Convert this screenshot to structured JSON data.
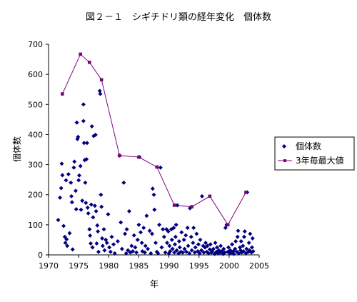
{
  "chart_data": {
    "type": "scatter",
    "title": "図２－１　シギチドリ類の経年変化　個体数",
    "xlabel": "年",
    "ylabel": "個体数",
    "xlim": [
      1970,
      2005
    ],
    "ylim": [
      0,
      700
    ],
    "x_ticks": [
      1970,
      1975,
      1980,
      1985,
      1990,
      1995,
      2000,
      2005
    ],
    "y_ticks": [
      0,
      100,
      200,
      300,
      400,
      500,
      600,
      700
    ],
    "grid": false,
    "legend_position": "right",
    "series": [
      {
        "name": "個体数",
        "kind": "scatter",
        "marker": "diamond",
        "color": "#000080",
        "points": [
          [
            1971.6,
            116
          ],
          [
            1971.9,
            190
          ],
          [
            1972.1,
            222
          ],
          [
            1972.2,
            303
          ],
          [
            1972.3,
            265
          ],
          [
            1972.5,
            96
          ],
          [
            1972.7,
            60
          ],
          [
            1972.8,
            40
          ],
          [
            1972.9,
            248
          ],
          [
            1973.0,
            52
          ],
          [
            1973.1,
            30
          ],
          [
            1973.3,
            268
          ],
          [
            1973.5,
            72
          ],
          [
            1973.7,
            240
          ],
          [
            1973.8,
            195
          ],
          [
            1973.9,
            175
          ],
          [
            1974.0,
            18
          ],
          [
            1974.2,
            290
          ],
          [
            1974.3,
            310
          ],
          [
            1974.5,
            213
          ],
          [
            1974.6,
            152
          ],
          [
            1974.7,
            440
          ],
          [
            1974.8,
            385
          ],
          [
            1974.9,
            392
          ],
          [
            1975.0,
            248
          ],
          [
            1975.1,
            264
          ],
          [
            1975.3,
            295
          ],
          [
            1975.4,
            150
          ],
          [
            1975.6,
            180
          ],
          [
            1975.8,
            445
          ],
          [
            1975.9,
            372
          ],
          [
            1975.8,
            500
          ],
          [
            1976.0,
            315
          ],
          [
            1976.1,
            240
          ],
          [
            1976.2,
            173
          ],
          [
            1976.3,
            318
          ],
          [
            1976.4,
            372
          ],
          [
            1976.5,
            157
          ],
          [
            1976.6,
            138
          ],
          [
            1976.8,
            85
          ],
          [
            1976.9,
            64
          ],
          [
            1977.0,
            38
          ],
          [
            1977.1,
            167
          ],
          [
            1977.2,
            427
          ],
          [
            1977.3,
            25
          ],
          [
            1977.4,
            125
          ],
          [
            1977.5,
            395
          ],
          [
            1977.7,
            163
          ],
          [
            1977.8,
            399
          ],
          [
            1977.9,
            145
          ],
          [
            1978.0,
            38
          ],
          [
            1978.1,
            98
          ],
          [
            1978.2,
            78
          ],
          [
            1978.3,
            10
          ],
          [
            1978.5,
            545
          ],
          [
            1978.6,
            535
          ],
          [
            1978.7,
            200
          ],
          [
            1978.8,
            160
          ],
          [
            1978.9,
            55
          ],
          [
            1979.0,
            30
          ],
          [
            1979.2,
            85
          ],
          [
            1979.3,
            15
          ],
          [
            1979.5,
            50
          ],
          [
            1979.7,
            40
          ],
          [
            1979.9,
            135
          ],
          [
            1980.1,
            25
          ],
          [
            1980.3,
            10
          ],
          [
            1980.5,
            60
          ],
          [
            1980.8,
            35
          ],
          [
            1981.0,
            5
          ],
          [
            1981.5,
            45
          ],
          [
            1981.8,
            330
          ],
          [
            1982.0,
            108
          ],
          [
            1982.2,
            20
          ],
          [
            1982.5,
            240
          ],
          [
            1982.7,
            70
          ],
          [
            1982.9,
            5
          ],
          [
            1983.0,
            85
          ],
          [
            1983.2,
            15
          ],
          [
            1983.4,
            145
          ],
          [
            1983.6,
            8
          ],
          [
            1983.8,
            30
          ],
          [
            1984.0,
            12
          ],
          [
            1984.2,
            65
          ],
          [
            1984.4,
            25
          ],
          [
            1984.6,
            8
          ],
          [
            1984.8,
            50
          ],
          [
            1985.0,
            100
          ],
          [
            1985.1,
            325
          ],
          [
            1985.3,
            75
          ],
          [
            1985.5,
            40
          ],
          [
            1985.6,
            12
          ],
          [
            1985.8,
            90
          ],
          [
            1986.0,
            8
          ],
          [
            1986.1,
            30
          ],
          [
            1986.3,
            130
          ],
          [
            1986.5,
            20
          ],
          [
            1986.8,
            80
          ],
          [
            1987.0,
            5
          ],
          [
            1987.2,
            70
          ],
          [
            1987.3,
            220
          ],
          [
            1987.5,
            200
          ],
          [
            1987.6,
            150
          ],
          [
            1987.8,
            40
          ],
          [
            1988.0,
            10
          ],
          [
            1988.2,
            5
          ],
          [
            1988.4,
            100
          ],
          [
            1988.6,
            290
          ],
          [
            1988.8,
            25
          ],
          [
            1989.0,
            85
          ],
          [
            1989.2,
            60
          ],
          [
            1989.4,
            8
          ],
          [
            1989.6,
            85
          ],
          [
            1989.7,
            40
          ],
          [
            1989.9,
            78
          ],
          [
            1990.0,
            5
          ],
          [
            1990.1,
            30
          ],
          [
            1990.2,
            12
          ],
          [
            1990.4,
            85
          ],
          [
            1990.5,
            50
          ],
          [
            1990.6,
            20
          ],
          [
            1990.8,
            90
          ],
          [
            1990.9,
            8
          ],
          [
            1991.0,
            35
          ],
          [
            1991.1,
            60
          ],
          [
            1991.2,
            100
          ],
          [
            1991.3,
            15
          ],
          [
            1991.4,
            165
          ],
          [
            1991.6,
            5
          ],
          [
            1991.7,
            45
          ],
          [
            1991.8,
            25
          ],
          [
            1992.0,
            10
          ],
          [
            1992.1,
            75
          ],
          [
            1992.3,
            8
          ],
          [
            1992.5,
            50
          ],
          [
            1992.6,
            20
          ],
          [
            1992.8,
            65
          ],
          [
            1992.9,
            10
          ],
          [
            1993.1,
            90
          ],
          [
            1993.2,
            30
          ],
          [
            1993.4,
            5
          ],
          [
            1993.5,
            155
          ],
          [
            1993.7,
            60
          ],
          [
            1993.8,
            15
          ],
          [
            1994.0,
            40
          ],
          [
            1994.1,
            90
          ],
          [
            1994.3,
            8
          ],
          [
            1994.4,
            25
          ],
          [
            1994.6,
            70
          ],
          [
            1994.8,
            12
          ],
          [
            1994.9,
            35
          ],
          [
            1995.1,
            5
          ],
          [
            1995.2,
            50
          ],
          [
            1995.4,
            15
          ],
          [
            1995.5,
            195
          ],
          [
            1995.7,
            30
          ],
          [
            1995.8,
            8
          ],
          [
            1996.0,
            25
          ],
          [
            1996.1,
            40
          ],
          [
            1996.3,
            10
          ],
          [
            1996.4,
            30
          ],
          [
            1996.6,
            5
          ],
          [
            1996.8,
            18
          ],
          [
            1996.9,
            35
          ],
          [
            1997.1,
            8
          ],
          [
            1997.2,
            12
          ],
          [
            1997.4,
            20
          ],
          [
            1997.6,
            3
          ],
          [
            1997.7,
            40
          ],
          [
            1997.9,
            10
          ],
          [
            1998.0,
            25
          ],
          [
            1998.2,
            5
          ],
          [
            1998.3,
            15
          ],
          [
            1998.5,
            8
          ],
          [
            1998.6,
            30
          ],
          [
            1998.8,
            12
          ],
          [
            1999.0,
            3
          ],
          [
            1999.1,
            20
          ],
          [
            1999.3,
            8
          ],
          [
            1999.4,
            90
          ],
          [
            1999.6,
            100
          ],
          [
            1999.8,
            10
          ],
          [
            1999.9,
            25
          ],
          [
            2000.1,
            5
          ],
          [
            2000.2,
            15
          ],
          [
            2000.4,
            8
          ],
          [
            2000.5,
            35
          ],
          [
            2000.7,
            12
          ],
          [
            2000.8,
            3
          ],
          [
            2001.0,
            20
          ],
          [
            2001.1,
            45
          ],
          [
            2001.3,
            10
          ],
          [
            2001.4,
            60
          ],
          [
            2001.5,
            80
          ],
          [
            2001.6,
            5
          ],
          [
            2001.8,
            25
          ],
          [
            2001.9,
            15
          ],
          [
            2002.0,
            45
          ],
          [
            2002.1,
            8
          ],
          [
            2002.3,
            30
          ],
          [
            2002.4,
            12
          ],
          [
            2002.5,
            60
          ],
          [
            2002.6,
            78
          ],
          [
            2002.8,
            5
          ],
          [
            2002.9,
            20
          ],
          [
            2003.0,
            208
          ],
          [
            2003.2,
            10
          ],
          [
            2003.3,
            40
          ],
          [
            2003.4,
            15
          ],
          [
            2003.5,
            70
          ],
          [
            2003.7,
            8
          ],
          [
            2003.8,
            25
          ],
          [
            2003.9,
            55
          ],
          [
            2004.0,
            12
          ]
        ]
      },
      {
        "name": "3年毎最大値",
        "kind": "line",
        "marker": "square",
        "color": "#800080",
        "points": [
          [
            1972.3,
            535
          ],
          [
            1975.3,
            667
          ],
          [
            1976.8,
            640
          ],
          [
            1978.8,
            582
          ],
          [
            1981.8,
            330
          ],
          [
            1985.0,
            325
          ],
          [
            1988.0,
            292
          ],
          [
            1990.9,
            165
          ],
          [
            1993.8,
            160
          ],
          [
            1996.8,
            195
          ],
          [
            1999.8,
            100
          ],
          [
            2002.8,
            208
          ]
        ]
      }
    ]
  }
}
